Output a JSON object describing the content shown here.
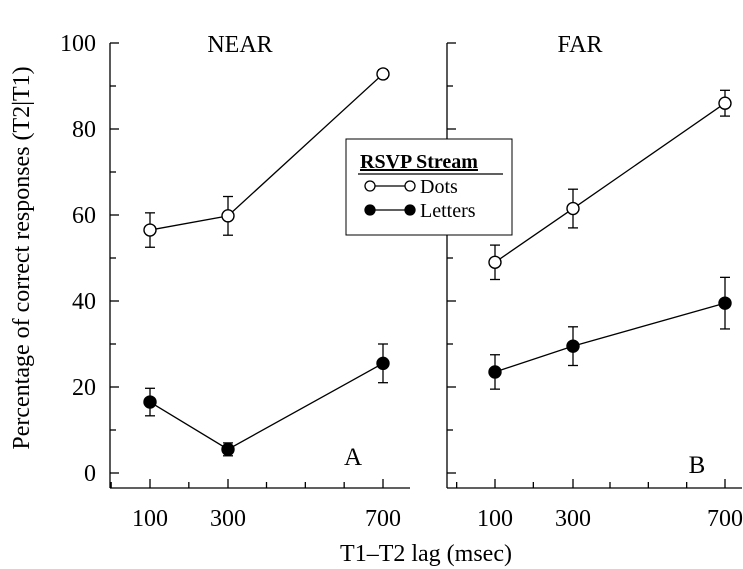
{
  "figure": {
    "y_axis_title": "Percentage of correct responses (T2|T1)",
    "x_axis_title": "T1–T2 lag (msec)"
  },
  "legend": {
    "title": "RSVP Stream",
    "entries": [
      "Dots",
      "Letters"
    ]
  },
  "chart_data": [
    {
      "type": "line",
      "panel": "A",
      "title": "NEAR",
      "panel_label": "A",
      "x": [
        100,
        300,
        700
      ],
      "x_tick_labels": [
        "100",
        "300",
        "700"
      ],
      "xlim": [
        -50,
        750
      ],
      "ylim": [
        0,
        100
      ],
      "y_ticks": [
        0,
        20,
        40,
        60,
        80,
        100
      ],
      "y_tick_labels": [
        "0",
        "20",
        "40",
        "60",
        "80",
        "100"
      ],
      "ylabel": "Percentage of correct responses (T2|T1)",
      "xlabel": "T1–T2 lag (msec)",
      "legend_position": "right",
      "series": [
        {
          "name": "Dots",
          "marker": "open-circle",
          "values": [
            56.5,
            59.8,
            92.8
          ],
          "error": [
            4.0,
            4.5,
            1.0
          ]
        },
        {
          "name": "Letters",
          "marker": "filled-circle",
          "values": [
            16.5,
            5.5,
            25.5
          ],
          "error": [
            3.2,
            1.5,
            4.5
          ]
        }
      ]
    },
    {
      "type": "line",
      "panel": "B",
      "title": "FAR",
      "panel_label": "B",
      "x": [
        100,
        300,
        700
      ],
      "x_tick_labels": [
        "100",
        "300",
        "700"
      ],
      "xlim": [
        -50,
        750
      ],
      "ylim": [
        0,
        100
      ],
      "y_ticks": [
        0,
        20,
        40,
        60,
        80,
        100
      ],
      "legend_position": "left",
      "series": [
        {
          "name": "Dots",
          "marker": "open-circle",
          "values": [
            49.0,
            61.5,
            86.0
          ],
          "error": [
            4.0,
            4.5,
            3.0
          ]
        },
        {
          "name": "Letters",
          "marker": "filled-circle",
          "values": [
            23.5,
            29.5,
            39.5
          ],
          "error": [
            4.0,
            4.5,
            6.0
          ]
        }
      ]
    }
  ]
}
